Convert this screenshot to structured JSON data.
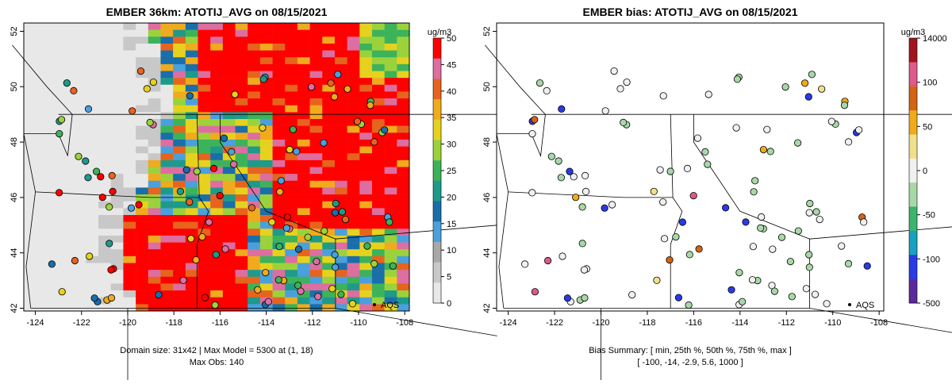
{
  "left_panel": {
    "title": "EMBER 36km: ATOTIJ_AVG on 08/15/2021",
    "x_ticks": [
      "-124",
      "-122",
      "-120",
      "-118",
      "-116",
      "-114",
      "-112",
      "-110",
      "-108"
    ],
    "y_ticks": [
      "42",
      "44",
      "46",
      "48",
      "50",
      "52"
    ],
    "colorbar_unit": "ug/m3",
    "colorbar_ticks": [
      "0",
      "5",
      "10",
      "15",
      "20",
      "25",
      "30",
      "35",
      "40",
      "45",
      "50"
    ],
    "site_label": "AQS",
    "caption_line1": "Domain size: 31x42 | Max Model = 5300 at (1, 18)",
    "caption_line2": "Max Obs: 140"
  },
  "right_panel": {
    "title": "EMBER bias: ATOTIJ_AVG on 08/15/2021",
    "x_ticks": [
      "-124",
      "-122",
      "-120",
      "-118",
      "-116",
      "-114",
      "-112",
      "-110",
      "-108"
    ],
    "y_ticks": [
      "42",
      "44",
      "46",
      "48",
      "50",
      "52"
    ],
    "colorbar_unit": "ug/m3",
    "colorbar_ticks": [
      "-500",
      "-100",
      "-50",
      "0",
      "50",
      "100",
      "14000"
    ],
    "site_label": "AQS",
    "caption_line1": "Bias Summary: [ min, 25th %, 50th %, 75th %, max ]",
    "caption_line2": "[ -100,  -14,  -2.9,  5.6,  1000 ]"
  },
  "map_extent": {
    "lon": [
      -124.5,
      -107.8
    ],
    "lat": [
      41.9,
      52.3
    ]
  },
  "colors": {
    "conc_scale": [
      "#e8e8e8",
      "#c8c8c8",
      "#a8a8a8",
      "#4aa0dc",
      "#1a6eaa",
      "#1e9a8a",
      "#3cb35a",
      "#9bd23c",
      "#e6d21e",
      "#f0aa1e",
      "#e6641e",
      "#dc6ea0",
      "#ff0000"
    ],
    "bias_scale": [
      "#5a2a9a",
      "#2a3ae6",
      "#1aa0c0",
      "#3cb36e",
      "#a8d8a8",
      "#f0f0f0",
      "#f0e08c",
      "#f0aa1e",
      "#d26414",
      "#dc5a8c",
      "#a0141e"
    ]
  }
}
